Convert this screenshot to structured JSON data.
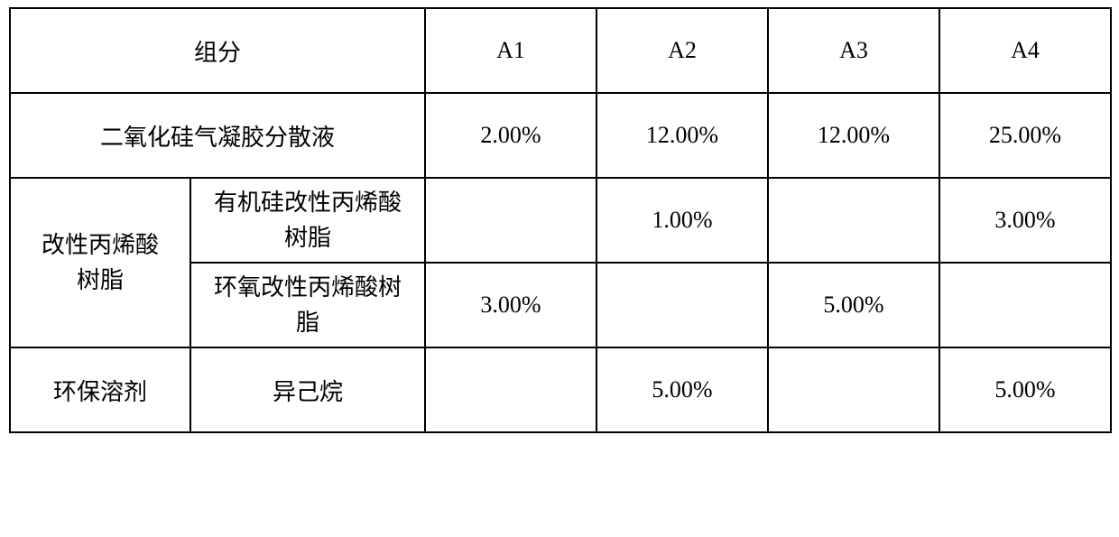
{
  "table": {
    "header": {
      "component_label": "组分",
      "cols": [
        "A1",
        "A2",
        "A3",
        "A4"
      ]
    },
    "rows": [
      {
        "label_span": "二氧化硅气凝胶分散液",
        "values": [
          "2.00%",
          "12.00%",
          "12.00%",
          "25.00%"
        ]
      },
      {
        "group_label": "改性丙烯酸\n树脂",
        "sub": [
          {
            "label": "有机硅改性丙烯酸\n树脂",
            "values": [
              "",
              "1.00%",
              "",
              "3.00%"
            ]
          },
          {
            "label": "环氧改性丙烯酸树\n脂",
            "values": [
              "3.00%",
              "",
              "5.00%",
              ""
            ]
          }
        ]
      },
      {
        "group_label": "环保溶剂",
        "sub_label": "异己烷",
        "values": [
          "",
          "5.00%",
          "",
          "5.00%"
        ]
      }
    ],
    "colors": {
      "border": "#000000",
      "background": "#ffffff",
      "text": "#000000"
    },
    "font_size_pt": 20
  }
}
